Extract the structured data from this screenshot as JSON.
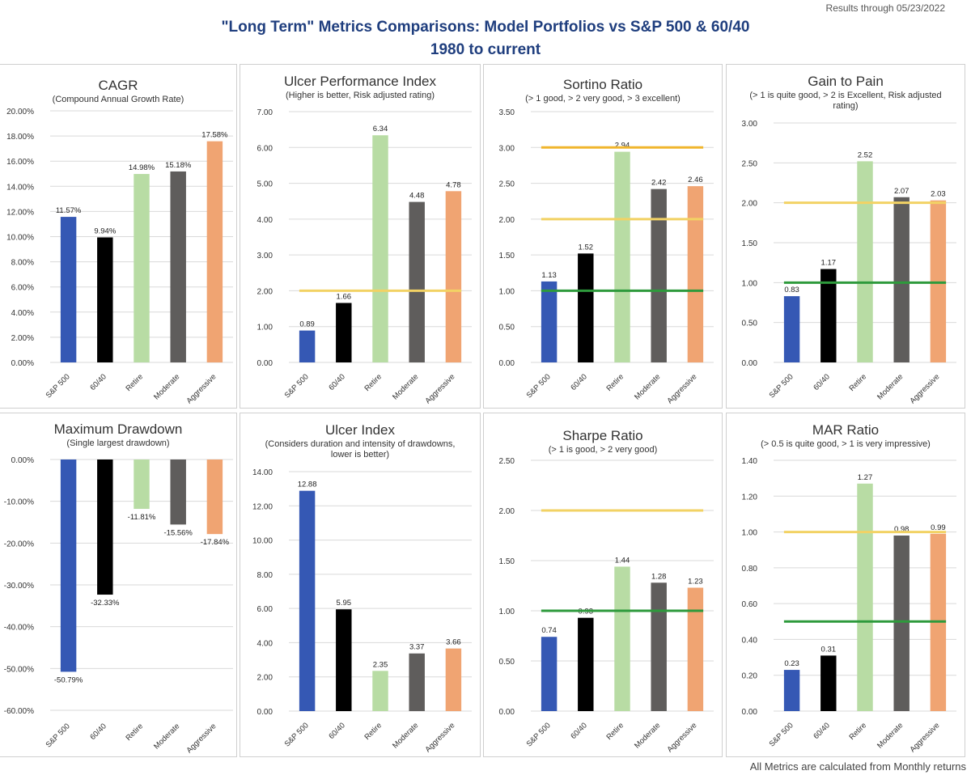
{
  "header": {
    "date_note": "Results through 05/23/2022",
    "title_line1": "\"Long Term\" Metrics Comparisons: Model Portfolios vs S&P 500 & 60/40",
    "title_line2": "1980 to current"
  },
  "footer": {
    "note": "All Metrics are calculated from Monthly returns"
  },
  "colors": {
    "sp500": "#3558b4",
    "sixty_forty": "#000000",
    "retire": "#b8dca4",
    "moderate": "#5f5d5c",
    "aggressive": "#f0a472",
    "threshold_yellow": "#f2d264",
    "threshold_orange": "#f0b52c",
    "threshold_green": "#2e9a3c"
  },
  "chart_data": [
    {
      "id": "cagr",
      "type": "bar",
      "title": "CAGR",
      "subtitle": "(Compound Annual Growth Rate)",
      "categories": [
        "S&P 500",
        "60/40",
        "Retire",
        "Moderate",
        "Aggressive"
      ],
      "values": [
        11.57,
        9.94,
        14.98,
        15.18,
        17.58
      ],
      "data_labels": [
        "11.57%",
        "9.94%",
        "14.98%",
        "15.18%",
        "17.58%"
      ],
      "ylim": [
        0,
        20
      ],
      "yticks": [
        "0.00%",
        "2.00%",
        "4.00%",
        "6.00%",
        "8.00%",
        "10.00%",
        "12.00%",
        "14.00%",
        "16.00%",
        "18.00%",
        "20.00%"
      ],
      "thresholds": []
    },
    {
      "id": "upi",
      "type": "bar",
      "title": "Ulcer Performance Index",
      "subtitle": "(Higher is better, Risk adjusted rating)",
      "categories": [
        "S&P 500",
        "60/40",
        "Retire",
        "Moderate",
        "Aggressive"
      ],
      "values": [
        0.89,
        1.66,
        6.34,
        4.48,
        4.78
      ],
      "data_labels": [
        "0.89",
        "1.66",
        "6.34",
        "4.48",
        "4.78"
      ],
      "ylim": [
        0,
        7
      ],
      "yticks": [
        "0.00",
        "1.00",
        "2.00",
        "3.00",
        "4.00",
        "5.00",
        "6.00",
        "7.00"
      ],
      "thresholds": [
        {
          "value": 2,
          "color": "yellow"
        }
      ]
    },
    {
      "id": "sortino",
      "type": "bar",
      "title": "Sortino Ratio",
      "subtitle": "(> 1 good, > 2 very good, > 3 excellent)",
      "categories": [
        "S&P 500",
        "60/40",
        "Retire",
        "Moderate",
        "Aggressive"
      ],
      "values": [
        1.13,
        1.52,
        2.94,
        2.42,
        2.46
      ],
      "data_labels": [
        "1.13",
        "1.52",
        "2.94",
        "2.42",
        "2.46"
      ],
      "ylim": [
        0,
        3.5
      ],
      "yticks": [
        "0.00",
        "0.50",
        "1.00",
        "1.50",
        "2.00",
        "2.50",
        "3.00",
        "3.50"
      ],
      "thresholds": [
        {
          "value": 1,
          "color": "green"
        },
        {
          "value": 2,
          "color": "yellow"
        },
        {
          "value": 3,
          "color": "orange"
        }
      ]
    },
    {
      "id": "gtp",
      "type": "bar",
      "title": "Gain to Pain",
      "subtitle": "(> 1 is quite good, > 2 is Excellent, Risk adjusted rating)",
      "categories": [
        "S&P 500",
        "60/40",
        "Retire",
        "Moderate",
        "Aggressive"
      ],
      "values": [
        0.83,
        1.17,
        2.52,
        2.07,
        2.03
      ],
      "data_labels": [
        "0.83",
        "1.17",
        "2.52",
        "2.07",
        "2.03"
      ],
      "ylim": [
        0,
        3
      ],
      "yticks": [
        "0.00",
        "0.50",
        "1.00",
        "1.50",
        "2.00",
        "2.50",
        "3.00"
      ],
      "thresholds": [
        {
          "value": 1,
          "color": "green"
        },
        {
          "value": 2,
          "color": "yellow"
        }
      ]
    },
    {
      "id": "mdd",
      "type": "bar",
      "title": "Maximum Drawdown",
      "subtitle": "(Single largest drawdown)",
      "categories": [
        "S&P 500",
        "60/40",
        "Retire",
        "Moderate",
        "Aggressive"
      ],
      "values": [
        -50.79,
        -32.33,
        -11.81,
        -15.56,
        -17.84
      ],
      "data_labels": [
        "-50.79%",
        "-32.33%",
        "-11.81%",
        "-15.56%",
        "-17.84%"
      ],
      "ylim": [
        -60,
        0
      ],
      "yticks": [
        "-60.00%",
        "-50.00%",
        "-40.00%",
        "-30.00%",
        "-20.00%",
        "-10.00%",
        "0.00%"
      ],
      "thresholds": []
    },
    {
      "id": "ui",
      "type": "bar",
      "title": "Ulcer Index",
      "subtitle": "(Considers duration and intensity of drawdowns, lower is better)",
      "categories": [
        "S&P 500",
        "60/40",
        "Retire",
        "Moderate",
        "Aggressive"
      ],
      "values": [
        12.88,
        5.95,
        2.35,
        3.37,
        3.66
      ],
      "data_labels": [
        "12.88",
        "5.95",
        "2.35",
        "3.37",
        "3.66"
      ],
      "ylim": [
        0,
        14
      ],
      "yticks": [
        "0.00",
        "2.00",
        "4.00",
        "6.00",
        "8.00",
        "10.00",
        "12.00",
        "14.00"
      ],
      "thresholds": []
    },
    {
      "id": "sharpe",
      "type": "bar",
      "title": "Sharpe Ratio",
      "subtitle": "(> 1 is good, > 2 very good)",
      "categories": [
        "S&P 500",
        "60/40",
        "Retire",
        "Moderate",
        "Aggressive"
      ],
      "values": [
        0.74,
        0.93,
        1.44,
        1.28,
        1.23
      ],
      "data_labels": [
        "0.74",
        "0.93",
        "1.44",
        "1.28",
        "1.23"
      ],
      "ylim": [
        0,
        2.5
      ],
      "yticks": [
        "0.00",
        "0.50",
        "1.00",
        "1.50",
        "2.00",
        "2.50"
      ],
      "thresholds": [
        {
          "value": 1,
          "color": "green"
        },
        {
          "value": 2,
          "color": "yellow"
        }
      ]
    },
    {
      "id": "mar",
      "type": "bar",
      "title": "MAR Ratio",
      "subtitle": "(> 0.5 is quite good, > 1 is very impressive)",
      "categories": [
        "S&P 500",
        "60/40",
        "Retire",
        "Moderate",
        "Aggressive"
      ],
      "values": [
        0.23,
        0.31,
        1.27,
        0.98,
        0.99
      ],
      "data_labels": [
        "0.23",
        "0.31",
        "1.27",
        "0.98",
        "0.99"
      ],
      "ylim": [
        0,
        1.4
      ],
      "yticks": [
        "0.00",
        "0.20",
        "0.40",
        "0.60",
        "0.80",
        "1.00",
        "1.20",
        "1.40"
      ],
      "thresholds": [
        {
          "value": 0.5,
          "color": "green"
        },
        {
          "value": 1,
          "color": "yellow"
        }
      ]
    }
  ]
}
